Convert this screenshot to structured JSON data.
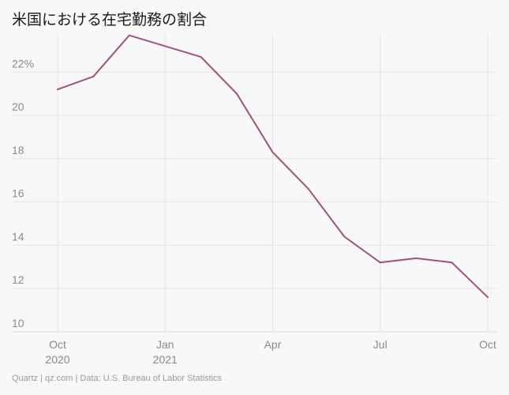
{
  "title": "米国における在宅勤務の割合",
  "footer": "Quartz | qz.com | Data: U.S. Bureau of Labor Statistics",
  "colors": {
    "line": "#a0527f",
    "grid": "#e6e4e4",
    "axis": "#dcdada",
    "text": "#8a8a8a"
  },
  "chart_data": {
    "type": "line",
    "title": "米国における在宅勤務の割合",
    "xlabel": "",
    "ylabel": "",
    "grid": true,
    "ylim": [
      10,
      23.8
    ],
    "y_ticks": [
      {
        "value": 10,
        "label": "10"
      },
      {
        "value": 12,
        "label": "12"
      },
      {
        "value": 14,
        "label": "14"
      },
      {
        "value": 16,
        "label": "16"
      },
      {
        "value": 18,
        "label": "18"
      },
      {
        "value": 20,
        "label": "20"
      },
      {
        "value": 22,
        "label": "22%"
      }
    ],
    "x_ticks": [
      {
        "index": 0,
        "label": "Oct",
        "sub": "2020"
      },
      {
        "index": 3,
        "label": "Jan",
        "sub": "2021"
      },
      {
        "index": 6,
        "label": "Apr",
        "sub": ""
      },
      {
        "index": 9,
        "label": "Jul",
        "sub": ""
      },
      {
        "index": 12,
        "label": "Oct",
        "sub": ""
      }
    ],
    "x": [
      "2020-10",
      "2020-11",
      "2020-12",
      "2021-01",
      "2021-02",
      "2021-03",
      "2021-04",
      "2021-05",
      "2021-06",
      "2021-07",
      "2021-08",
      "2021-09",
      "2021-10"
    ],
    "series": [
      {
        "values": [
          21.2,
          21.8,
          23.7,
          23.2,
          22.7,
          21.0,
          18.3,
          16.6,
          14.4,
          13.2,
          13.4,
          13.2,
          11.6
        ]
      }
    ]
  }
}
